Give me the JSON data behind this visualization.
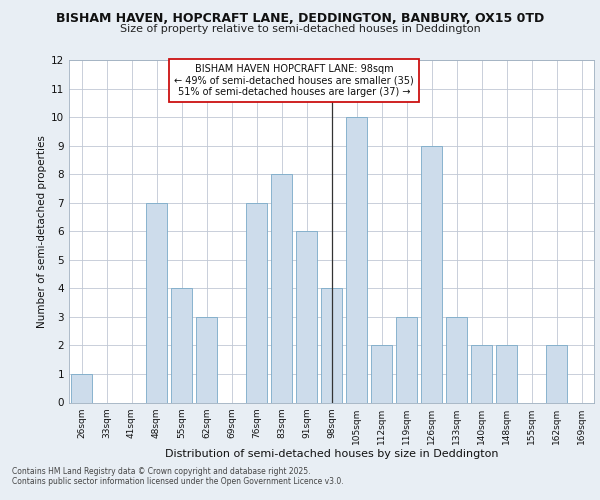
{
  "title1": "BISHAM HAVEN, HOPCRAFT LANE, DEDDINGTON, BANBURY, OX15 0TD",
  "title2": "Size of property relative to semi-detached houses in Deddington",
  "xlabel": "Distribution of semi-detached houses by size in Deddington",
  "ylabel": "Number of semi-detached properties",
  "categories": [
    "26sqm",
    "33sqm",
    "41sqm",
    "48sqm",
    "55sqm",
    "62sqm",
    "69sqm",
    "76sqm",
    "83sqm",
    "91sqm",
    "98sqm",
    "105sqm",
    "112sqm",
    "119sqm",
    "126sqm",
    "133sqm",
    "140sqm",
    "148sqm",
    "155sqm",
    "162sqm",
    "169sqm"
  ],
  "values": [
    1,
    0,
    0,
    7,
    4,
    3,
    0,
    7,
    8,
    6,
    4,
    10,
    2,
    3,
    9,
    3,
    2,
    2,
    0,
    2,
    0
  ],
  "highlight_index": 10,
  "bar_color": "#cddceb",
  "bar_edge_color": "#7aaac8",
  "vline_x": 10,
  "annotation_text": "BISHAM HAVEN HOPCRAFT LANE: 98sqm\n← 49% of semi-detached houses are smaller (35)\n51% of semi-detached houses are larger (37) →",
  "ylim": [
    0,
    12
  ],
  "yticks": [
    0,
    1,
    2,
    3,
    4,
    5,
    6,
    7,
    8,
    9,
    10,
    11,
    12
  ],
  "footer1": "Contains HM Land Registry data © Crown copyright and database right 2025.",
  "footer2": "Contains public sector information licensed under the Open Government Licence v3.0.",
  "bg_color": "#e8eef4",
  "plot_bg_color": "#ffffff",
  "grid_color": "#c0c8d4"
}
